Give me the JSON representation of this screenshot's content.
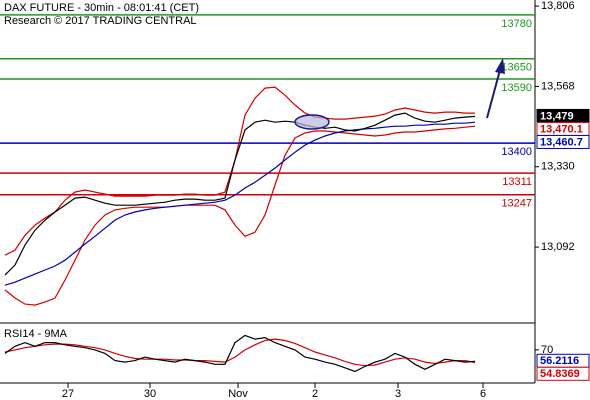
{
  "chart_data": [
    {
      "type": "line",
      "title": "DAX FUTURE - 30min - 08:01:41 (CET)",
      "subtitle": "Research © 2017 TRADING CENTRAL",
      "x": [
        0,
        1,
        2,
        3,
        4,
        5,
        6,
        7,
        8,
        9,
        10,
        11,
        12,
        13,
        14,
        15,
        16,
        17,
        18,
        19,
        20,
        21,
        22,
        23,
        24,
        25,
        26,
        27,
        28,
        29,
        30,
        31,
        32,
        33,
        34,
        35,
        36,
        37,
        38,
        39,
        40,
        41,
        42,
        43,
        44,
        45,
        46,
        47
      ],
      "xlim": [
        -0.5,
        53
      ],
      "ylim": [
        12870,
        13824
      ],
      "yticks": [
        {
          "value": 13806,
          "label": "13,806"
        },
        {
          "value": 13568,
          "label": "13,568"
        },
        {
          "value": 13330,
          "label": "13,330"
        },
        {
          "value": 13092,
          "label": "13,092"
        }
      ],
      "series": [
        {
          "color": "#d40000",
          "values": [
            13068,
            13083,
            13127,
            13157,
            13178,
            13196,
            13231,
            13255,
            13261,
            13255,
            13249,
            13243,
            13243,
            13243,
            13243,
            13246,
            13246,
            13246,
            13249,
            13249,
            13246,
            13246,
            13255,
            13350,
            13483,
            13533,
            13563,
            13566,
            13542,
            13513,
            13489,
            13477,
            13474,
            13471,
            13471,
            13474,
            13477,
            13480,
            13486,
            13498,
            13504,
            13498,
            13492,
            13489,
            13492,
            13492,
            13489,
            13489
          ]
        },
        {
          "color": "#d40000",
          "values": [
            12965,
            12941,
            12923,
            12920,
            12929,
            12941,
            12994,
            13053,
            13113,
            13157,
            13187,
            13202,
            13207,
            13210,
            13210,
            13210,
            13210,
            13213,
            13216,
            13216,
            13216,
            13216,
            13202,
            13157,
            13124,
            13136,
            13187,
            13276,
            13364,
            13415,
            13430,
            13436,
            13436,
            13433,
            13430,
            13427,
            13424,
            13421,
            13424,
            13430,
            13433,
            13433,
            13436,
            13439,
            13442,
            13444,
            13447,
            13450
          ]
        },
        {
          "color": "#0000b4",
          "values": [
            12979,
            12988,
            13000,
            13012,
            13024,
            13036,
            13053,
            13077,
            13101,
            13124,
            13148,
            13172,
            13187,
            13196,
            13202,
            13207,
            13210,
            13213,
            13216,
            13219,
            13222,
            13225,
            13231,
            13246,
            13267,
            13284,
            13305,
            13326,
            13350,
            13373,
            13394,
            13409,
            13421,
            13430,
            13436,
            13439,
            13442,
            13444,
            13447,
            13450,
            13450,
            13453,
            13453,
            13456,
            13456,
            13459,
            13459,
            13462
          ]
        },
        {
          "color": "#000000",
          "values": [
            13009,
            13039,
            13098,
            13142,
            13172,
            13196,
            13216,
            13237,
            13240,
            13231,
            13222,
            13216,
            13216,
            13216,
            13219,
            13222,
            13225,
            13231,
            13234,
            13234,
            13231,
            13231,
            13237,
            13350,
            13439,
            13462,
            13468,
            13462,
            13465,
            13462,
            13453,
            13447,
            13444,
            13447,
            13439,
            13436,
            13444,
            13453,
            13468,
            13483,
            13489,
            13474,
            13465,
            13462,
            13468,
            13474,
            13477,
            13479
          ]
        }
      ],
      "levels": [
        {
          "value": 13780,
          "color": "#1f9a1f"
        },
        {
          "value": 13650,
          "color": "#1f9a1f"
        },
        {
          "value": 13590,
          "color": "#1f9a1f"
        },
        {
          "value": 13400,
          "color": "#0000b4"
        },
        {
          "value": 13311,
          "color": "#d40000"
        },
        {
          "value": 13247,
          "color": "#d40000"
        }
      ],
      "tags": [
        {
          "value": 13479,
          "label": "13,479",
          "color": "#000000"
        },
        {
          "value": 13470.1,
          "label": "13,470.1",
          "color": "#d40000"
        },
        {
          "value": 13460.7,
          "label": "13,460.7",
          "color": "#0000b4"
        }
      ]
    },
    {
      "type": "line",
      "title": "RSI14 - 9MA",
      "x": [
        0,
        1,
        2,
        3,
        4,
        5,
        6,
        7,
        8,
        9,
        10,
        11,
        12,
        13,
        14,
        15,
        16,
        17,
        18,
        19,
        20,
        21,
        22,
        23,
        24,
        25,
        26,
        27,
        28,
        29,
        30,
        31,
        32,
        33,
        34,
        35,
        36,
        37,
        38,
        39,
        40,
        41,
        42,
        43,
        44,
        45,
        46,
        47
      ],
      "xlim": [
        -0.5,
        53
      ],
      "xticks": [
        {
          "value": 6.3,
          "label": "27"
        },
        {
          "value": 14.5,
          "label": "30"
        },
        {
          "value": 23.3,
          "label": "Nov"
        },
        {
          "value": 31,
          "label": "2"
        },
        {
          "value": 39.3,
          "label": "3"
        },
        {
          "value": 47.8,
          "label": "6"
        }
      ],
      "ylim": [
        30,
        100
      ],
      "yticks": [
        70
      ],
      "series": [
        {
          "color": "#d40000",
          "values": [
            67.4,
            70,
            72.6,
            74.3,
            76.1,
            77,
            77,
            76.1,
            74.3,
            72.6,
            70,
            65.7,
            62.2,
            59.6,
            58.7,
            58.7,
            58.7,
            57.8,
            57.8,
            57,
            57,
            56.1,
            55.2,
            61.3,
            70,
            76.1,
            81.3,
            83,
            81.3,
            77.8,
            72.6,
            67.4,
            63.9,
            60.4,
            56.1,
            52.6,
            50.9,
            51.7,
            55.2,
            58.7,
            60.4,
            58.7,
            55.2,
            53.5,
            55.2,
            57,
            57,
            54.8
          ]
        },
        {
          "color": "#000000",
          "values": [
            65.7,
            74.3,
            78.7,
            74.3,
            78.7,
            78.7,
            76.1,
            74.3,
            72.6,
            70,
            65.7,
            57,
            55.2,
            57,
            61.3,
            58.7,
            57,
            55.2,
            58.7,
            57,
            55.2,
            52.6,
            52.6,
            78.7,
            87.4,
            83,
            84.8,
            78.7,
            74.3,
            70,
            61.3,
            58.7,
            55.2,
            52.6,
            48.3,
            43.9,
            50,
            55.2,
            58.7,
            65.7,
            61.3,
            52.6,
            46.5,
            52.6,
            58.7,
            57,
            55.2,
            56.2
          ]
        }
      ],
      "tags": [
        {
          "value": 56.2116,
          "color": "#0000b4"
        },
        {
          "value": 54.8369,
          "color": "#d40000"
        }
      ]
    }
  ]
}
